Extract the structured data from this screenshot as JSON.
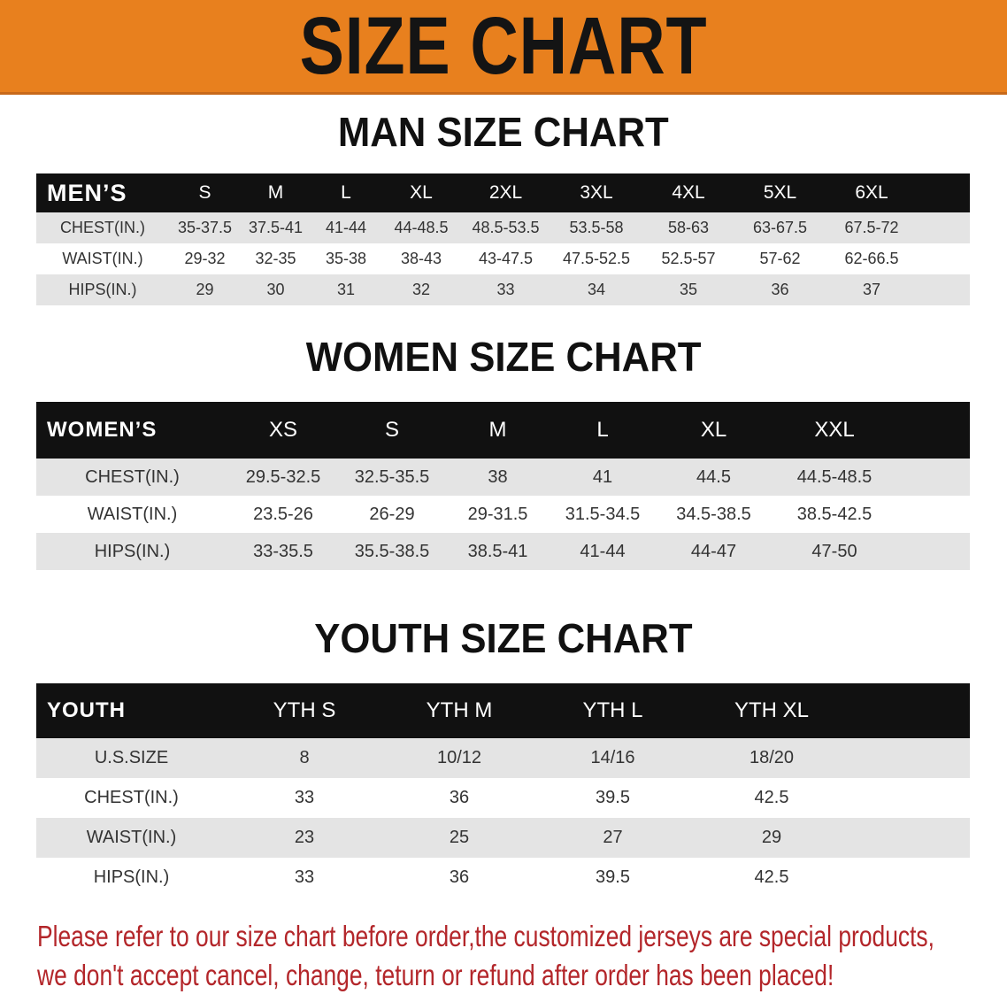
{
  "banner_title": "SIZE CHART",
  "colors": {
    "banner": "#e8801e",
    "header_row": "#111111",
    "stripe": "#e4e4e4",
    "note": "#b3262a"
  },
  "men": {
    "title": "MAN SIZE CHART",
    "header": [
      "MEN’S",
      "S",
      "M",
      "L",
      "XL",
      "2XL",
      "3XL",
      "4XL",
      "5XL",
      "6XL"
    ],
    "rows": [
      [
        "CHEST(IN.)",
        "35-37.5",
        "37.5-41",
        "41-44",
        "44-48.5",
        "48.5-53.5",
        "53.5-58",
        "58-63",
        "63-67.5",
        "67.5-72"
      ],
      [
        "WAIST(IN.)",
        "29-32",
        "32-35",
        "35-38",
        "38-43",
        "43-47.5",
        "47.5-52.5",
        "52.5-57",
        "57-62",
        "62-66.5"
      ],
      [
        "HIPS(IN.)",
        "29",
        "30",
        "31",
        "32",
        "33",
        "34",
        "35",
        "36",
        "37"
      ]
    ]
  },
  "women": {
    "title": "WOMEN SIZE CHART",
    "header": [
      "WOMEN’S",
      "XS",
      "S",
      "M",
      "L",
      "XL",
      "XXL"
    ],
    "rows": [
      [
        "CHEST(IN.)",
        "29.5-32.5",
        "32.5-35.5",
        "38",
        "41",
        "44.5",
        "44.5-48.5"
      ],
      [
        "WAIST(IN.)",
        "23.5-26",
        "26-29",
        "29-31.5",
        "31.5-34.5",
        "34.5-38.5",
        "38.5-42.5"
      ],
      [
        "HIPS(IN.)",
        "33-35.5",
        "35.5-38.5",
        "38.5-41",
        "41-44",
        "44-47",
        "47-50"
      ]
    ]
  },
  "youth": {
    "title": "YOUTH SIZE CHART",
    "header": [
      "YOUTH",
      "YTH S",
      "YTH M",
      "YTH L",
      "YTH XL"
    ],
    "rows": [
      [
        "U.S.SIZE",
        "8",
        "10/12",
        "14/16",
        "18/20"
      ],
      [
        "CHEST(IN.)",
        "33",
        "36",
        "39.5",
        "42.5"
      ],
      [
        "WAIST(IN.)",
        "23",
        "25",
        "27",
        "29"
      ],
      [
        "HIPS(IN.)",
        "33",
        "36",
        "39.5",
        "42.5"
      ]
    ]
  },
  "note": [
    "Please refer to our size chart before order,the customized jerseys are special products,",
    "we don't accept cancel, change, teturn or refund after order has been placed!"
  ]
}
